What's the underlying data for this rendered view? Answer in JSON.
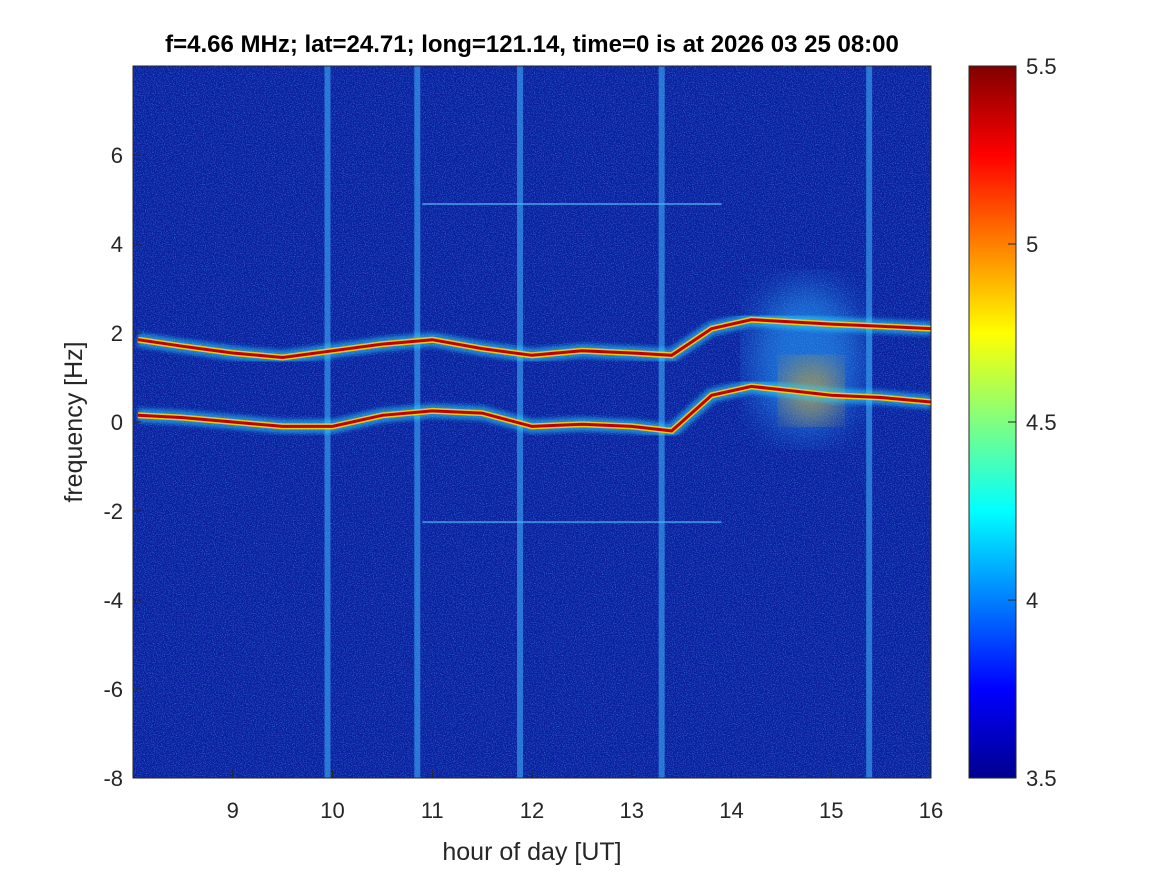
{
  "chart_data": {
    "type": "heatmap",
    "title": "f=4.66 MHz;  lat=24.71; long=121.14, time=0 is at 2026 03 25 08:00",
    "xlabel": "hour of day [UT]",
    "ylabel": "frequency [Hz]",
    "xlim": [
      8,
      16
    ],
    "ylim": [
      -8,
      8
    ],
    "x_ticks": [
      "9",
      "10",
      "11",
      "12",
      "13",
      "14",
      "15",
      "16"
    ],
    "y_ticks": [
      "-8",
      "-6",
      "-4",
      "-2",
      "0",
      "2",
      "4",
      "6"
    ],
    "colorbar": {
      "colormap": "jet",
      "clim": [
        3.5,
        5.5
      ],
      "ticks": [
        "3.5",
        "4",
        "4.5",
        "5",
        "5.5"
      ]
    },
    "features": {
      "upper_trace": [
        {
          "x": 8.05,
          "y": 1.85
        },
        {
          "x": 8.5,
          "y": 1.7
        },
        {
          "x": 9.0,
          "y": 1.55
        },
        {
          "x": 9.5,
          "y": 1.45
        },
        {
          "x": 10.0,
          "y": 1.6
        },
        {
          "x": 10.5,
          "y": 1.75
        },
        {
          "x": 11.0,
          "y": 1.85
        },
        {
          "x": 11.5,
          "y": 1.65
        },
        {
          "x": 12.0,
          "y": 1.5
        },
        {
          "x": 12.5,
          "y": 1.6
        },
        {
          "x": 13.0,
          "y": 1.55
        },
        {
          "x": 13.4,
          "y": 1.5
        },
        {
          "x": 13.8,
          "y": 2.1
        },
        {
          "x": 14.2,
          "y": 2.3
        },
        {
          "x": 14.6,
          "y": 2.25
        },
        {
          "x": 15.0,
          "y": 2.2
        },
        {
          "x": 15.5,
          "y": 2.15
        },
        {
          "x": 16.0,
          "y": 2.1
        }
      ],
      "lower_trace": [
        {
          "x": 8.05,
          "y": 0.15
        },
        {
          "x": 8.5,
          "y": 0.1
        },
        {
          "x": 9.0,
          "y": 0.0
        },
        {
          "x": 9.5,
          "y": -0.1
        },
        {
          "x": 10.0,
          "y": -0.1
        },
        {
          "x": 10.5,
          "y": 0.15
        },
        {
          "x": 11.0,
          "y": 0.25
        },
        {
          "x": 11.5,
          "y": 0.2
        },
        {
          "x": 12.0,
          "y": -0.1
        },
        {
          "x": 12.5,
          "y": -0.05
        },
        {
          "x": 13.0,
          "y": -0.1
        },
        {
          "x": 13.4,
          "y": -0.2
        },
        {
          "x": 13.8,
          "y": 0.6
        },
        {
          "x": 14.2,
          "y": 0.8
        },
        {
          "x": 14.6,
          "y": 0.7
        },
        {
          "x": 15.0,
          "y": 0.6
        },
        {
          "x": 15.5,
          "y": 0.55
        },
        {
          "x": 16.0,
          "y": 0.45
        }
      ],
      "vertical_stripes_hour": [
        9.95,
        10.85,
        11.88,
        13.3,
        15.38
      ],
      "faint_horizontal_lines_hz": [
        4.9,
        -2.25
      ]
    }
  }
}
